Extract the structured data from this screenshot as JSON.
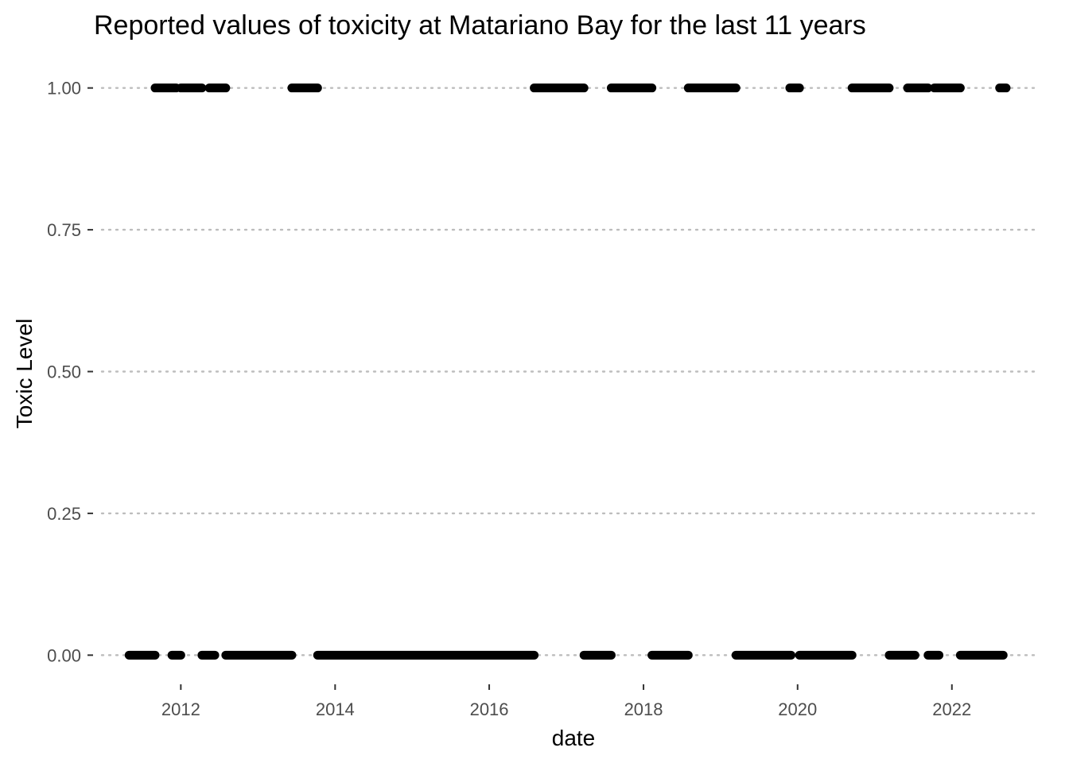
{
  "chart_data": {
    "type": "scatter",
    "title": "Reported values of toxicity at Matariano Bay for the last 11 years",
    "xlabel": "date",
    "ylabel": "Toxic Level",
    "x_type": "date",
    "xlim": [
      "2010-11-15",
      "2023-01-25"
    ],
    "ylim": [
      -0.05,
      1.05
    ],
    "x_ticks": [
      {
        "label": "2012",
        "value": "2012-01-01"
      },
      {
        "label": "2014",
        "value": "2014-01-01"
      },
      {
        "label": "2016",
        "value": "2016-01-01"
      },
      {
        "label": "2018",
        "value": "2018-01-01"
      },
      {
        "label": "2020",
        "value": "2020-01-01"
      },
      {
        "label": "2022",
        "value": "2022-01-01"
      }
    ],
    "y_ticks": [
      {
        "label": "0.00",
        "value": 0
      },
      {
        "label": "0.25",
        "value": 0.25
      },
      {
        "label": "0.50",
        "value": 0.5
      },
      {
        "label": "0.75",
        "value": 0.75
      },
      {
        "label": "1.00",
        "value": 1
      }
    ],
    "grid": "horizontal-dotted",
    "marker_color": "#000000",
    "series": [
      {
        "y": 0,
        "runs": [
          [
            "2011-05-01",
            "2011-09-01"
          ],
          [
            "2011-11-20",
            "2012-01-01"
          ],
          [
            "2012-04-10",
            "2012-06-10"
          ],
          [
            "2012-08-01",
            "2013-06-10"
          ],
          [
            "2013-10-10",
            "2016-08-01"
          ],
          [
            "2017-03-25",
            "2017-08-01"
          ],
          [
            "2018-02-10",
            "2018-08-01"
          ],
          [
            "2019-03-15",
            "2019-12-01"
          ],
          [
            "2020-01-10",
            "2020-09-15"
          ],
          [
            "2021-03-10",
            "2021-07-10"
          ],
          [
            "2021-09-10",
            "2021-11-01"
          ],
          [
            "2022-02-10",
            "2022-09-01"
          ]
        ]
      },
      {
        "y": 1,
        "runs": [
          [
            "2011-09-01",
            "2011-12-10"
          ],
          [
            "2012-01-01",
            "2012-04-10"
          ],
          [
            "2012-05-15",
            "2012-08-01"
          ],
          [
            "2013-06-10",
            "2013-10-10"
          ],
          [
            "2016-08-01",
            "2017-03-25"
          ],
          [
            "2017-08-01",
            "2018-02-10"
          ],
          [
            "2018-08-01",
            "2019-03-15"
          ],
          [
            "2019-11-25",
            "2020-01-10"
          ],
          [
            "2020-09-15",
            "2021-03-10"
          ],
          [
            "2021-06-05",
            "2021-09-10"
          ],
          [
            "2021-10-10",
            "2022-02-10"
          ],
          [
            "2022-08-15",
            "2022-09-15"
          ]
        ]
      }
    ]
  }
}
